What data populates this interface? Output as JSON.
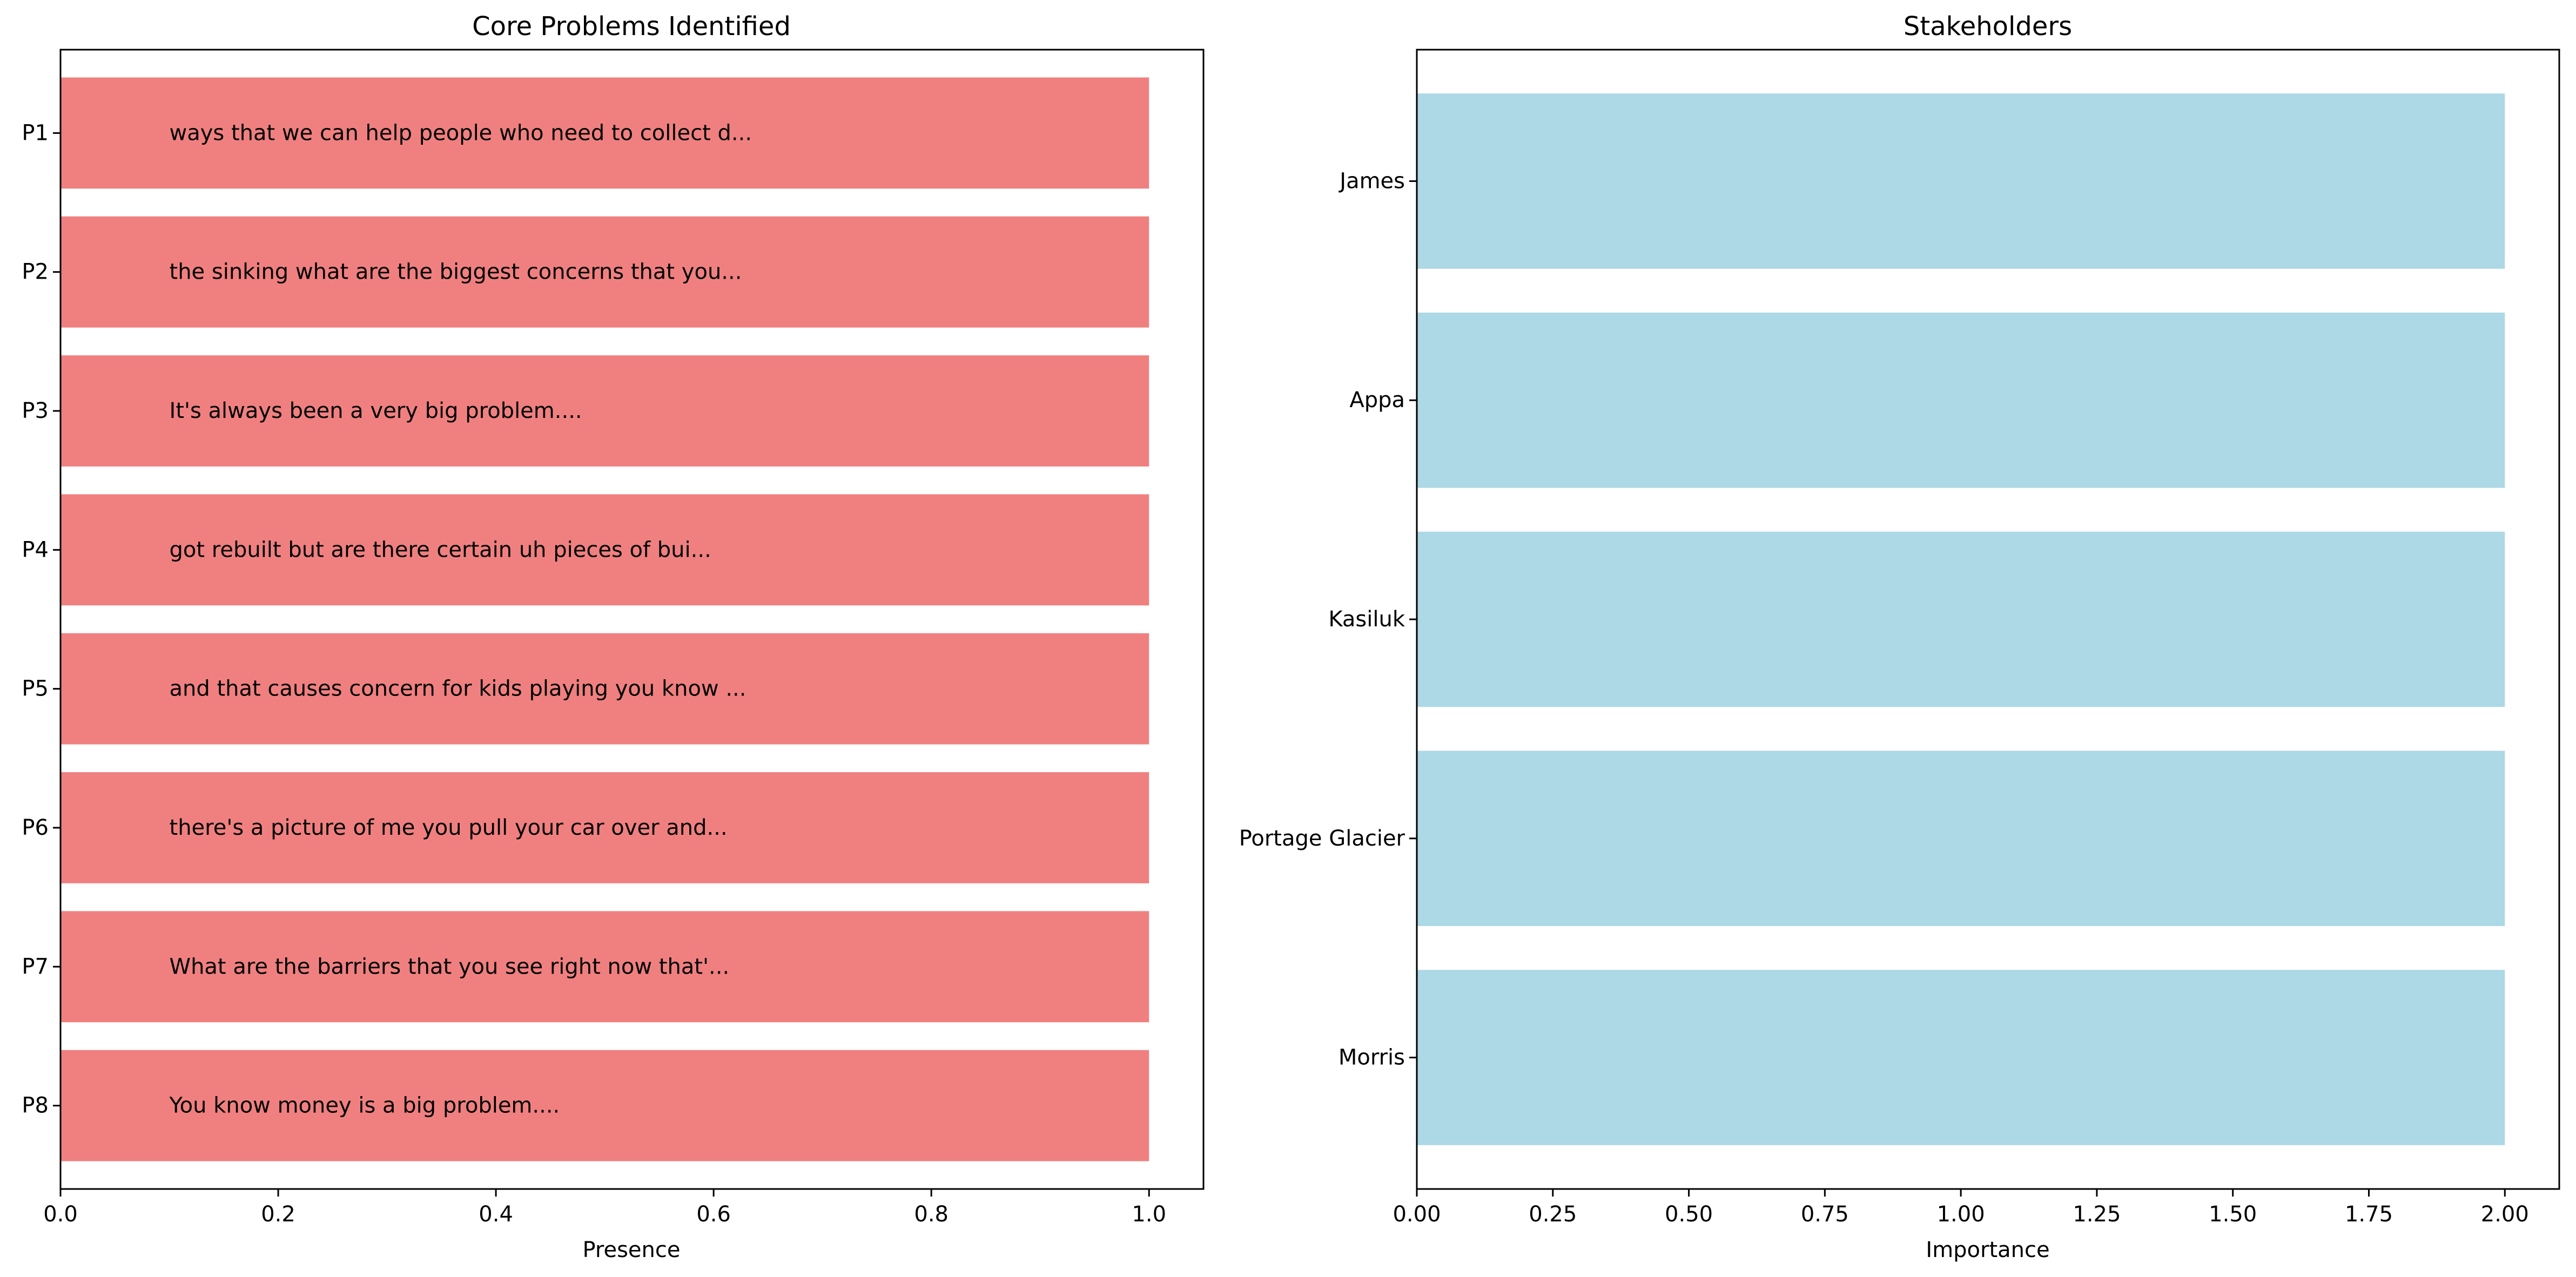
{
  "chart_data": [
    {
      "type": "bar",
      "orientation": "horizontal",
      "title": "Core Problems Identified",
      "xlabel": "Presence",
      "ylabel": "",
      "xlim": [
        0,
        1.05
      ],
      "x_ticks": [
        0.0,
        0.2,
        0.4,
        0.6,
        0.8,
        1.0
      ],
      "x_tick_labels": [
        "0.0",
        "0.2",
        "0.4",
        "0.6",
        "0.8",
        "1.0"
      ],
      "grid": false,
      "color": "#f08080",
      "categories": [
        "P1",
        "P2",
        "P3",
        "P4",
        "P5",
        "P6",
        "P7",
        "P8"
      ],
      "values": [
        1,
        1,
        1,
        1,
        1,
        1,
        1,
        1
      ],
      "bar_labels": [
        "ways that we can help people who need to collect d...",
        "the sinking what are the biggest concerns that you...",
        "It's always been a very big problem....",
        "got rebuilt but are there certain uh pieces of bui...",
        "and that causes concern for kids playing you know ...",
        "there's a picture of me you pull your car over and...",
        "What are the barriers that you see right now that'...",
        "You know money is a big problem...."
      ]
    },
    {
      "type": "bar",
      "orientation": "horizontal",
      "title": "Stakeholders",
      "xlabel": "Importance",
      "ylabel": "",
      "xlim": [
        0,
        2.1
      ],
      "x_ticks": [
        0.0,
        0.25,
        0.5,
        0.75,
        1.0,
        1.25,
        1.5,
        1.75,
        2.0
      ],
      "x_tick_labels": [
        "0.00",
        "0.25",
        "0.50",
        "0.75",
        "1.00",
        "1.25",
        "1.50",
        "1.75",
        "2.00"
      ],
      "grid": false,
      "color": "#add8e6",
      "categories": [
        "James",
        "Appa",
        "Kasiluk",
        "Portage Glacier",
        "Morris"
      ],
      "values": [
        2,
        2,
        2,
        2,
        2
      ]
    }
  ]
}
